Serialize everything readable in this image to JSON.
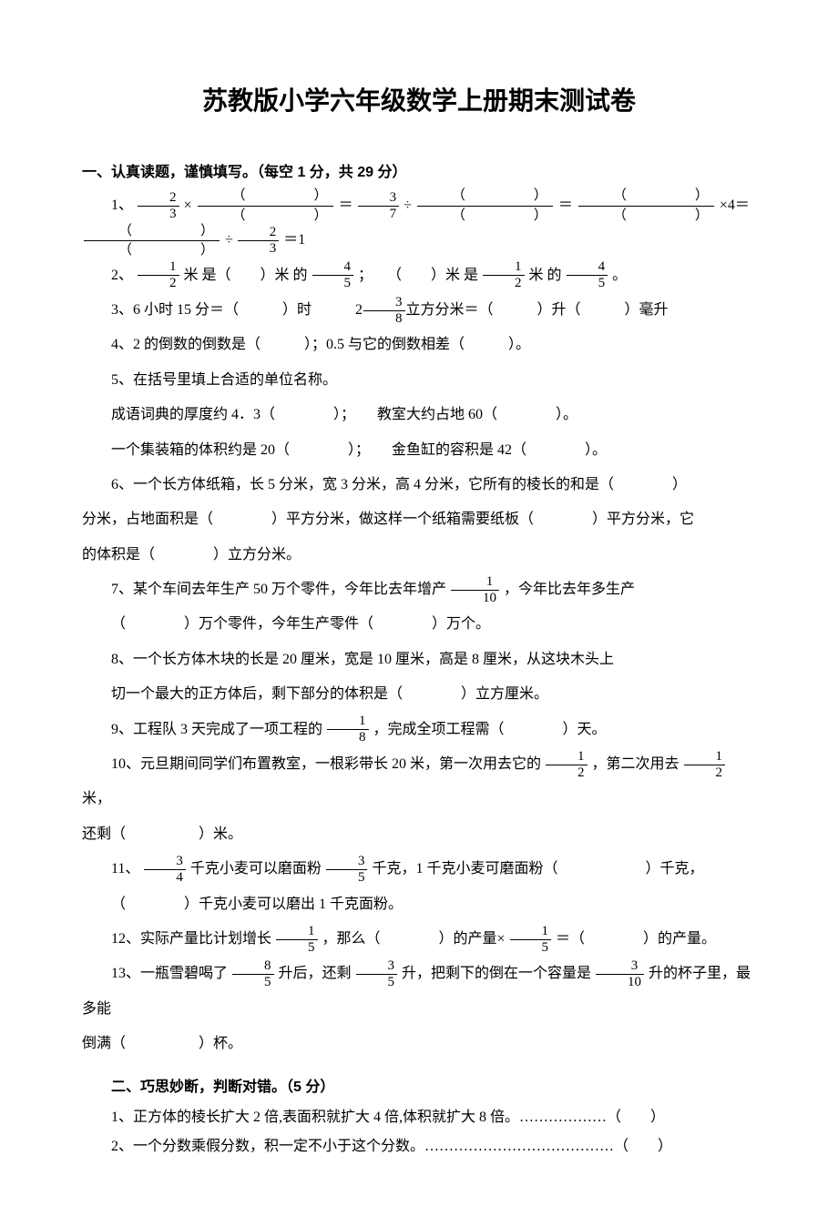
{
  "title": "苏教版小学六年级数学上册期末测试卷",
  "section1": {
    "heading": "一、认真读题，谨慎填写。（每空 1 分，共 29 分）",
    "q1_label": "1、",
    "q1_eq_end": "×4＝",
    "q1_div": "÷",
    "q1_eq1": "＝1",
    "q2": "2、",
    "q2_a": "米 是（　　）米 的",
    "q2_b": "；　　（　　）米 是",
    "q2_c": "米 的",
    "q2_d": "。",
    "q3": "3、6 小时 15 分＝（　　　）时　　　2",
    "q3b": "立方分米＝（　　　）升（　　　）毫升",
    "q4": "4、2 的倒数的倒数是（　　　）；0.5 与它的倒数相差（　　　）。",
    "q5": "5、在括号里填上合适的单位名称。",
    "q5a": "成语词典的厚度约 4．3（　　　　）；　　教室大约占地 60（　　　　）。",
    "q5b": "一个集装箱的体积约是 20（　　　　）；　　金鱼缸的容积是 42（　　　　）。",
    "q6": "6、一个长方体纸箱，长 5 分米，宽 3 分米，高 4 分米，它所有的棱长的和是（　　　　）",
    "q6b": "分米，占地面积是（　　　　）平方分米，做这样一个纸箱需要纸板（　　　　）平方分米，它",
    "q6c": "的体积是（　　　　）立方分米。",
    "q7": "7、某个车间去年生产 50 万个零件，今年比去年增产",
    "q7b": "，今年比去年多生产",
    "q7c": "（　　　　）万个零件，今年生产零件（　　　　）万个。",
    "q8": "8、一个长方体木块的长是 20 厘米，宽是 10 厘米，高是 8 厘米，从这块木头上",
    "q8b": "切一个最大的正方体后，剩下部分的体积是（　　　　）立方厘米。",
    "q9": "9、工程队 3 天完成了一项工程的",
    "q9b": "，完成全项工程需（　　　　）天。",
    "q10": "10、元旦期间同学们布置教室，一根彩带长 20 米，第一次用去它的",
    "q10b": "，第二次用去",
    "q10c": "米，",
    "q10d": "还剩（　　　　　）米。",
    "q11": "11、",
    "q11a": "千克小麦可以磨面粉",
    "q11b": "千克，1 千克小麦可磨面粉（　　　　　　）千克，",
    "q11c": "（　　　　）千克小麦可以磨出 1 千克面粉。",
    "q12": "12、实际产量比计划增长",
    "q12b": "，那么（　　　　）的产量×",
    "q12c": "＝（　　　　）的产量。",
    "q13": "13、一瓶雪碧喝了",
    "q13b": "升后，还剩",
    "q13c": "升，把剩下的倒在一个容量是",
    "q13d": "升的杯子里，最多能",
    "q13e": "倒满（　　　　　）杯。"
  },
  "section2": {
    "heading": "二、巧思妙断，判断对错。（5 分）",
    "q1": "1、正方体的棱长扩大 2 倍,表面积就扩大 4 倍,体积就扩大 8 倍。………………（　　）",
    "q2": "2、一个分数乘假分数，积一定不小于这个分数。…………………………………（　　）"
  },
  "fractions": {
    "f2_3": {
      "n": "2",
      "d": "3"
    },
    "f3_7": {
      "n": "3",
      "d": "7"
    },
    "blank": {
      "n": "（　　　　　）",
      "d": "（　　　　　）"
    },
    "f1_2": {
      "n": "1",
      "d": "2"
    },
    "f4_5": {
      "n": "4",
      "d": "5"
    },
    "f3_8": {
      "n": "3",
      "d": "8"
    },
    "f1_10": {
      "n": "1",
      "d": "10"
    },
    "f1_8": {
      "n": "1",
      "d": "8"
    },
    "f3_4": {
      "n": "3",
      "d": "4"
    },
    "f3_5": {
      "n": "3",
      "d": "5"
    },
    "f1_5": {
      "n": "1",
      "d": "5"
    },
    "f8_5": {
      "n": "8",
      "d": "5"
    },
    "f3_10": {
      "n": "3",
      "d": "10"
    }
  },
  "colors": {
    "background": "#ffffff",
    "text": "#000000"
  },
  "typography": {
    "title_fontsize": 28,
    "body_fontsize": 16,
    "title_family": "SimHei",
    "body_family": "SimSun"
  }
}
